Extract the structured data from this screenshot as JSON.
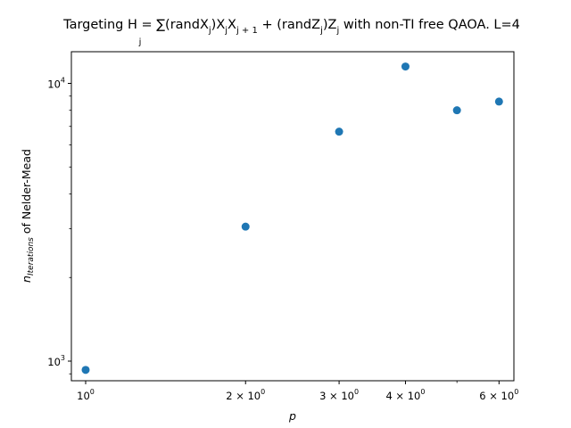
{
  "chart_data": {
    "type": "scatter",
    "title": {
      "main": "Targeting H = ∑(randX",
      "mid1": ")X",
      "mid2": "X",
      "mid3": " + (randZ",
      "mid4": ")Z",
      "end": " with non-TI free QAOA. L=4",
      "sub_j": "j",
      "sub_j1": "j + 1",
      "sum_index": "j"
    },
    "xlabel": "p",
    "ylabel": {
      "symbol": "n",
      "subscript": "Iterations",
      "rest": " of Nelder-Mead"
    },
    "xscale": "log",
    "yscale": "log",
    "xlim": [
      0.94,
      6.4
    ],
    "ylim": [
      850,
      13000
    ],
    "x_ticks": [
      {
        "value": 1,
        "base": "10",
        "exp": "0",
        "mult": ""
      },
      {
        "value": 2,
        "base": "10",
        "exp": "0",
        "mult": "2 × "
      },
      {
        "value": 3,
        "base": "10",
        "exp": "0",
        "mult": "3 × "
      },
      {
        "value": 4,
        "base": "10",
        "exp": "0",
        "mult": "4 × "
      },
      {
        "value": 6,
        "base": "10",
        "exp": "0",
        "mult": "6 × "
      }
    ],
    "x_minor_ticks": [
      5
    ],
    "y_ticks": [
      {
        "value": 1000,
        "base": "10",
        "exp": "3"
      },
      {
        "value": 10000,
        "base": "10",
        "exp": "4"
      }
    ],
    "grid": false,
    "marker_color": "#1f77b4",
    "points": [
      {
        "x": 1,
        "y": 930
      },
      {
        "x": 2,
        "y": 3050
      },
      {
        "x": 3,
        "y": 6700
      },
      {
        "x": 4,
        "y": 11500
      },
      {
        "x": 5,
        "y": 8000
      },
      {
        "x": 6,
        "y": 8600
      }
    ]
  }
}
